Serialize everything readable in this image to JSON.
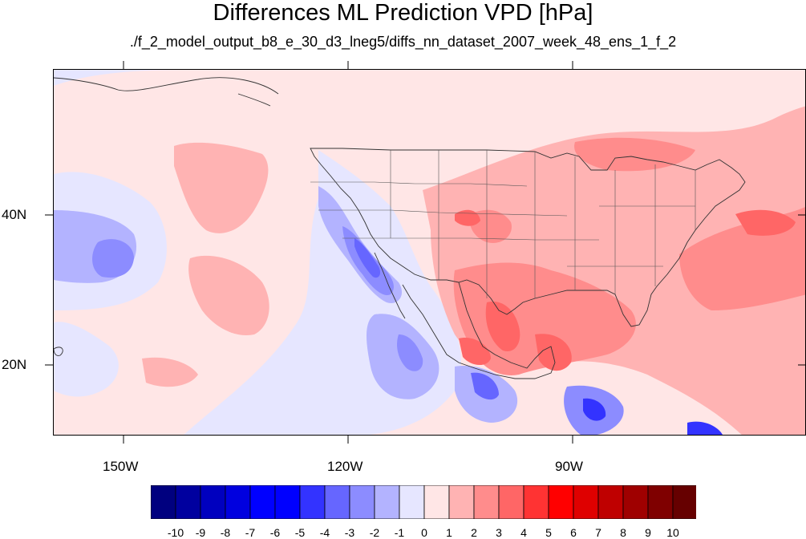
{
  "title": "Differences ML Prediction VPD [hPa]",
  "subtitle": "./f_2_model_output_b8_e_30_d3_lneg5/diffs_nn_dataset_2007_week_48_ens_1_f_2",
  "map": {
    "projection": "cylindrical equidistant",
    "lon_range": [
      -160,
      -60
    ],
    "lat_range": [
      10,
      59
    ],
    "lon_ticks": [
      "150W",
      "120W",
      "90W"
    ],
    "lat_ticks": [
      "40N",
      "20N"
    ],
    "features": [
      "coastlines",
      "US state boundaries",
      "national boundaries"
    ],
    "background_color": "#ffe6e6"
  },
  "colorbar": {
    "labels": [
      "-10",
      "-9",
      "-8",
      "-7",
      "-6",
      "-5",
      "-4",
      "-3",
      "-2",
      "-1",
      "0",
      "1",
      "2",
      "3",
      "4",
      "5",
      "6",
      "7",
      "8",
      "9",
      "10"
    ],
    "colors": [
      "#00007f",
      "#00009f",
      "#0000bf",
      "#0000df",
      "#0000ff",
      "#0000ff",
      "#3333ff",
      "#6666ff",
      "#8c8cff",
      "#b3b3ff",
      "#e6e6ff",
      "#ffe6e6",
      "#ffb3b3",
      "#ff8c8c",
      "#ff6666",
      "#ff3333",
      "#ff0000",
      "#df0000",
      "#bf0000",
      "#9f0000",
      "#7f0000",
      "#660000"
    ]
  }
}
